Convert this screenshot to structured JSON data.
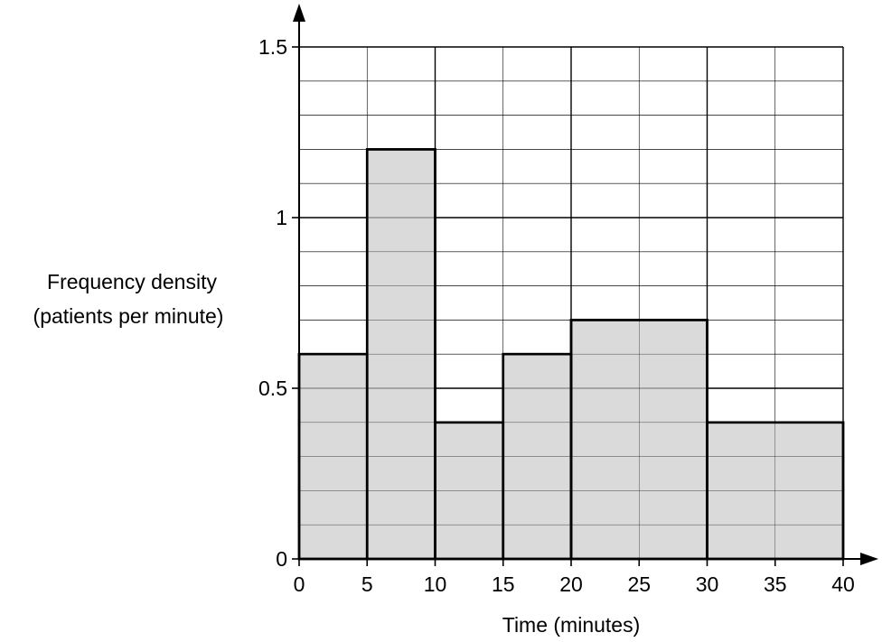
{
  "chart_data": {
    "type": "histogram",
    "xlabel": "Time (minutes)",
    "ylabel_line1": "Frequency density",
    "ylabel_line2": "(patients per minute)",
    "xlim": [
      0,
      40
    ],
    "ylim": [
      0,
      1.5
    ],
    "x_ticks": [
      0,
      5,
      10,
      15,
      20,
      25,
      30,
      35,
      40
    ],
    "x_tick_labels": [
      "0",
      "5",
      "10",
      "15",
      "20",
      "25",
      "30",
      "35",
      "40"
    ],
    "y_ticks": [
      0,
      0.5,
      1,
      1.5
    ],
    "y_tick_labels": [
      "0",
      "0.5",
      "1",
      "1.5"
    ],
    "x_minor_step": 5,
    "x_major_step": 10,
    "y_minor_step": 0.1,
    "y_major_step": 0.5,
    "bars": [
      {
        "x_start": 0,
        "x_end": 5,
        "value": 0.6
      },
      {
        "x_start": 5,
        "x_end": 10,
        "value": 1.2
      },
      {
        "x_start": 10,
        "x_end": 15,
        "value": 0.4
      },
      {
        "x_start": 15,
        "x_end": 20,
        "value": 0.6
      },
      {
        "x_start": 20,
        "x_end": 30,
        "value": 0.7
      },
      {
        "x_start": 30,
        "x_end": 40,
        "value": 0.4
      }
    ],
    "colors": {
      "bar_fill": "#d3d3d3",
      "bar_stroke": "#000000",
      "grid": "#000000",
      "axis": "#000000"
    },
    "grid": true
  }
}
